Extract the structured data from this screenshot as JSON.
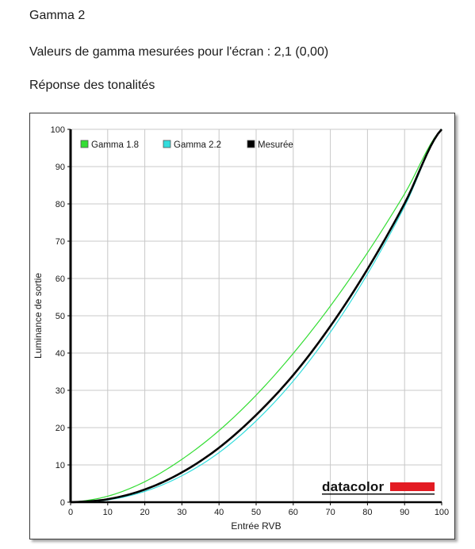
{
  "page": {
    "title": "Gamma 2",
    "gamma_line": "Valeurs de gamma mesurées pour l'écran : 2,1 (0,00)",
    "section_title": "Réponse des tonalités"
  },
  "logo": {
    "text": "datacolor",
    "color": "#e31b23"
  },
  "chart_data": {
    "type": "line",
    "title": "",
    "xlabel": "Entrée RVB",
    "ylabel": "Luminance de sortie",
    "xlim": [
      0,
      100
    ],
    "ylim": [
      0,
      100
    ],
    "xticks": [
      "0",
      "10",
      "20",
      "30",
      "40",
      "50",
      "60",
      "70",
      "80",
      "90",
      "100"
    ],
    "yticks": [
      "0",
      "10",
      "20",
      "30",
      "40",
      "50",
      "60",
      "70",
      "80",
      "90",
      "100"
    ],
    "grid": true,
    "legend_position": "top-left",
    "x": [
      0,
      10,
      20,
      30,
      40,
      50,
      60,
      70,
      80,
      90,
      100
    ],
    "series": [
      {
        "name": "Gamma 1.8",
        "color": "#33dd33",
        "values": [
          0,
          1.6,
          5.5,
          11.5,
          19.2,
          28.7,
          39.9,
          52.6,
          66.9,
          82.7,
          100
        ]
      },
      {
        "name": "Gamma 2.2",
        "color": "#33dddd",
        "values": [
          0,
          0.6,
          2.9,
          7.1,
          13.3,
          21.8,
          32.5,
          45.6,
          61.2,
          79.3,
          100
        ]
      },
      {
        "name": "Mesurée",
        "color": "#000000",
        "values": [
          0,
          0.8,
          3.4,
          8.0,
          14.6,
          23.4,
          34.1,
          47.2,
          62.5,
          80.1,
          100
        ]
      }
    ]
  }
}
